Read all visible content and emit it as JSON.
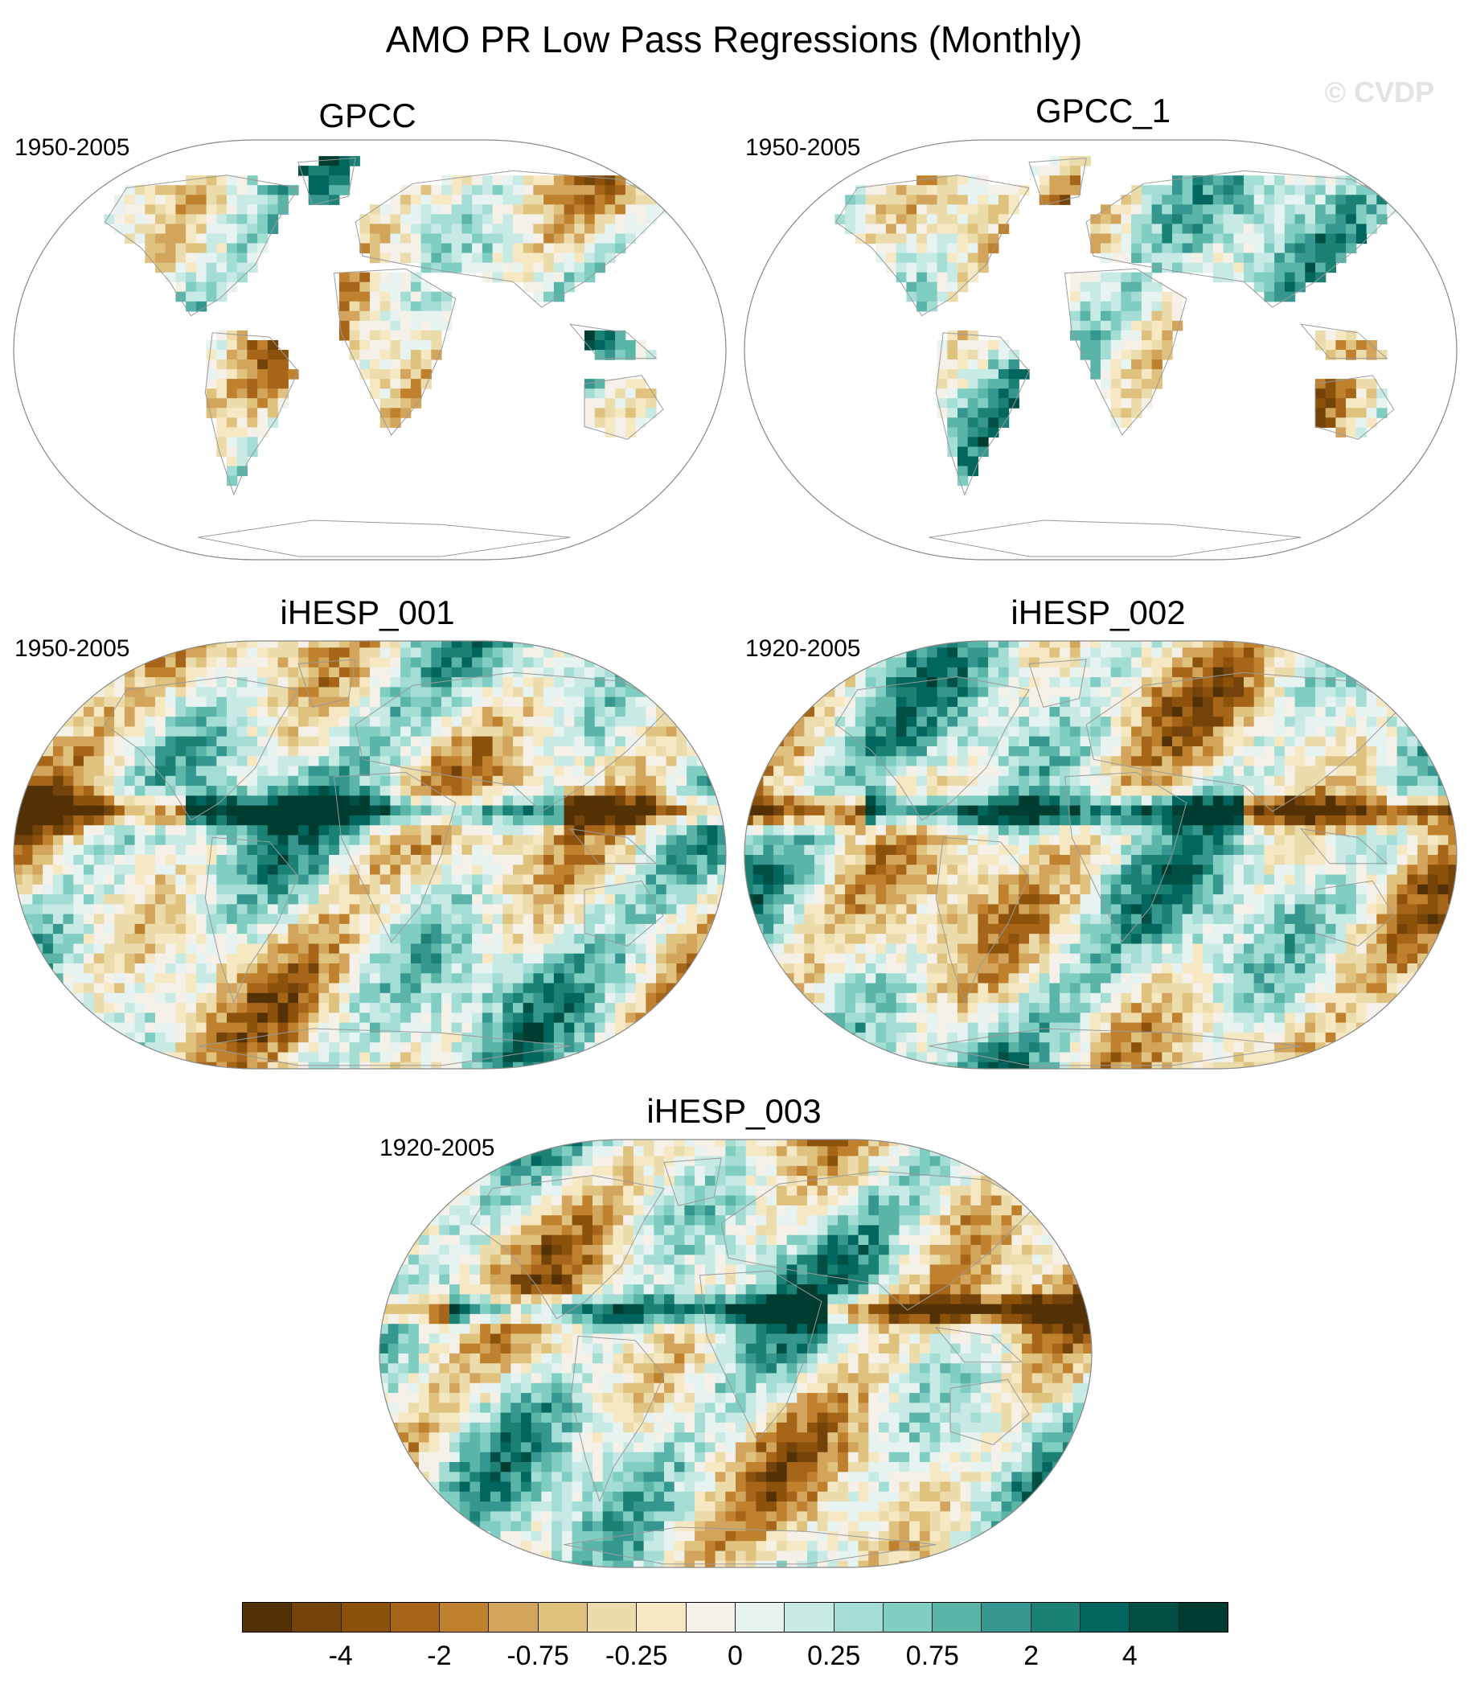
{
  "title": "AMO PR Low Pass Regressions (Monthly)",
  "watermark": "© CVDP",
  "panels": [
    {
      "name": "GPCC",
      "period": "1950-2005",
      "coverage": "land"
    },
    {
      "name": "GPCC_1",
      "period": "1950-2005",
      "coverage": "land"
    },
    {
      "name": "iHESP_001",
      "period": "1950-2005",
      "coverage": "global"
    },
    {
      "name": "iHESP_002",
      "period": "1920-2005",
      "coverage": "global"
    },
    {
      "name": "iHESP_003",
      "period": "1920-2005",
      "coverage": "global"
    }
  ],
  "colorbar": {
    "colors": [
      "#543005",
      "#74430a",
      "#8c510a",
      "#a66518",
      "#bf812d",
      "#d2a45c",
      "#dfc27d",
      "#ecdcab",
      "#f6e8c3",
      "#f5f1e8",
      "#e6f3f1",
      "#c7eae5",
      "#a3ddd4",
      "#80cdc1",
      "#5ab4a8",
      "#35978f",
      "#1b8175",
      "#01665e",
      "#004f45",
      "#003c30"
    ],
    "labels": [
      {
        "text": "-4",
        "boundary": 2
      },
      {
        "text": "-2",
        "boundary": 4
      },
      {
        "text": "-0.75",
        "boundary": 6
      },
      {
        "text": "-0.25",
        "boundary": 8
      },
      {
        "text": "0",
        "boundary": 10
      },
      {
        "text": "0.25",
        "boundary": 12
      },
      {
        "text": "0.75",
        "boundary": 14
      },
      {
        "text": "2",
        "boundary": 16
      },
      {
        "text": "4",
        "boundary": 18
      }
    ]
  }
}
